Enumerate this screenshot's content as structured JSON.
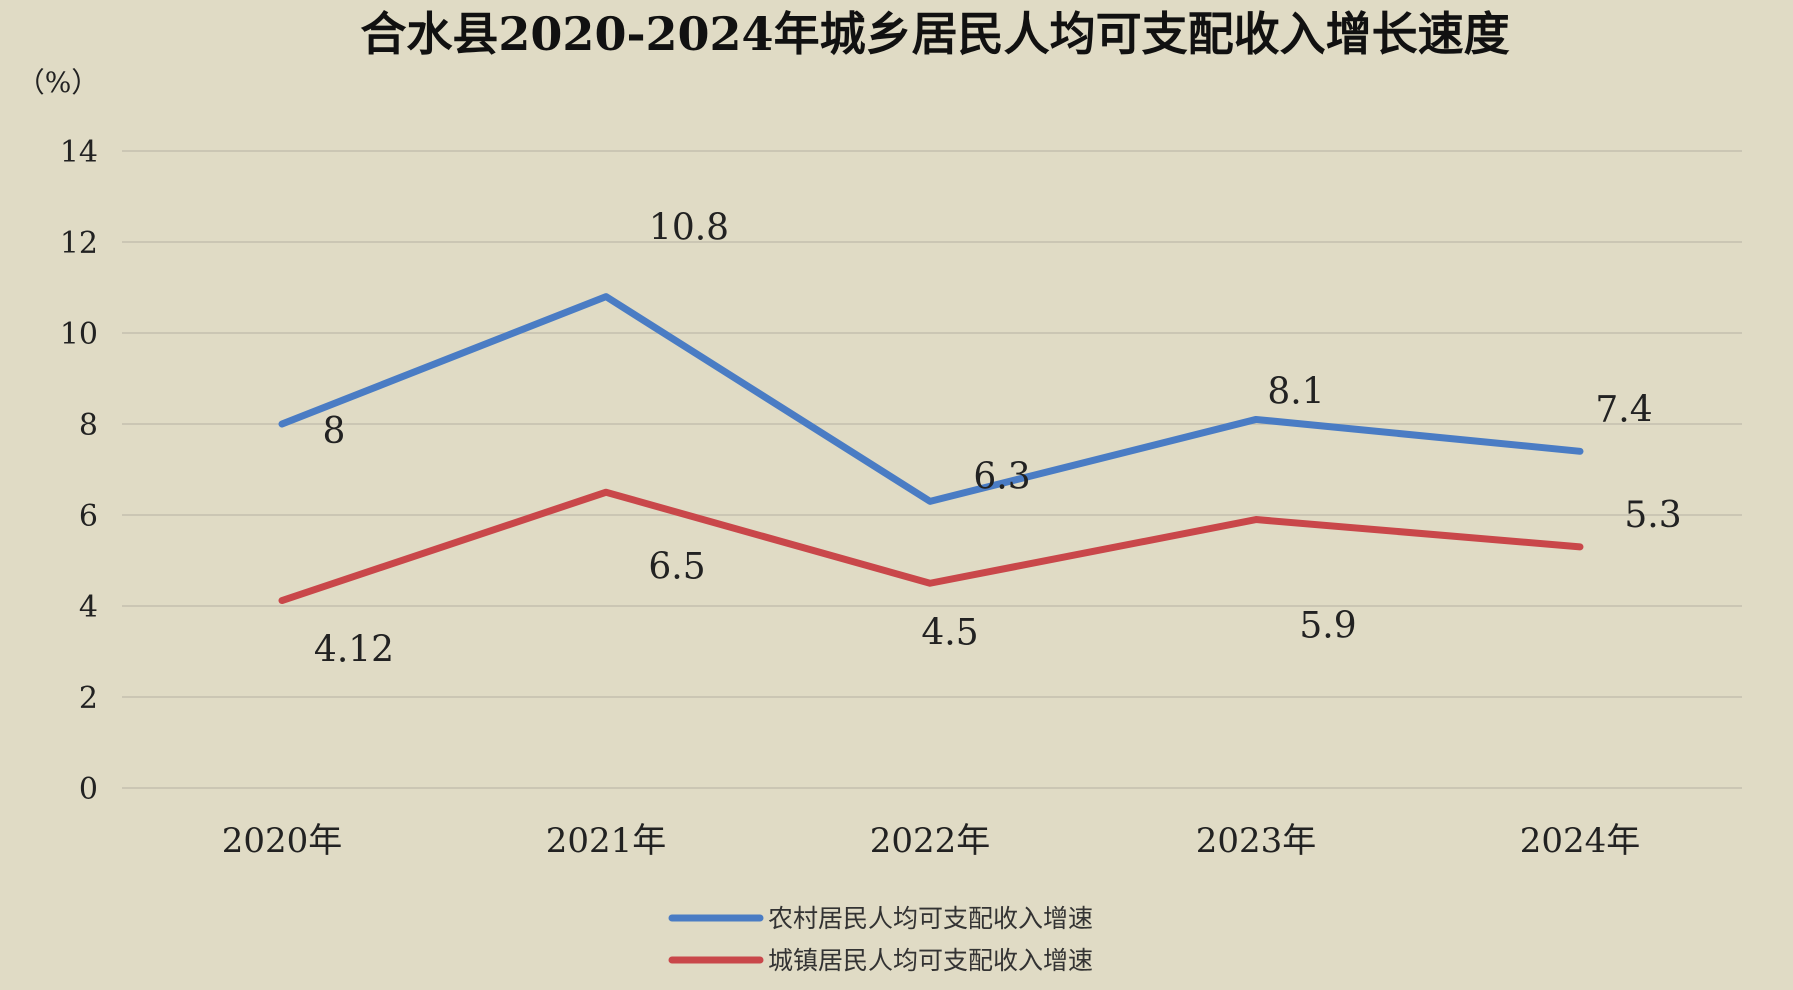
{
  "chart_data": {
    "type": "line",
    "title": "合水县2020-2024年城乡居民人均可支配收入增长速度",
    "ylabel": "（%）",
    "xlabel": "",
    "categories": [
      "2020年",
      "2021年",
      "2022年",
      "2023年",
      "2024年"
    ],
    "ylim": [
      0,
      14
    ],
    "yticks": [
      0,
      2,
      4,
      6,
      8,
      10,
      12,
      14
    ],
    "grid": true,
    "legend_position": "bottom",
    "series": [
      {
        "name": "农村居民人均可支配收入增速",
        "color": "#4a7cc4",
        "values": [
          8,
          10.8,
          6.3,
          8.1,
          7.4
        ],
        "labels": [
          "8",
          "10.8",
          "6.3",
          "8.1",
          "7.4"
        ]
      },
      {
        "name": "城镇居民人均可支配收入增速",
        "color": "#c9474a",
        "values": [
          4.12,
          6.5,
          4.5,
          5.9,
          5.3
        ],
        "labels": [
          "4.12",
          "6.5",
          "4.5",
          "5.9",
          "5.3"
        ]
      }
    ]
  }
}
